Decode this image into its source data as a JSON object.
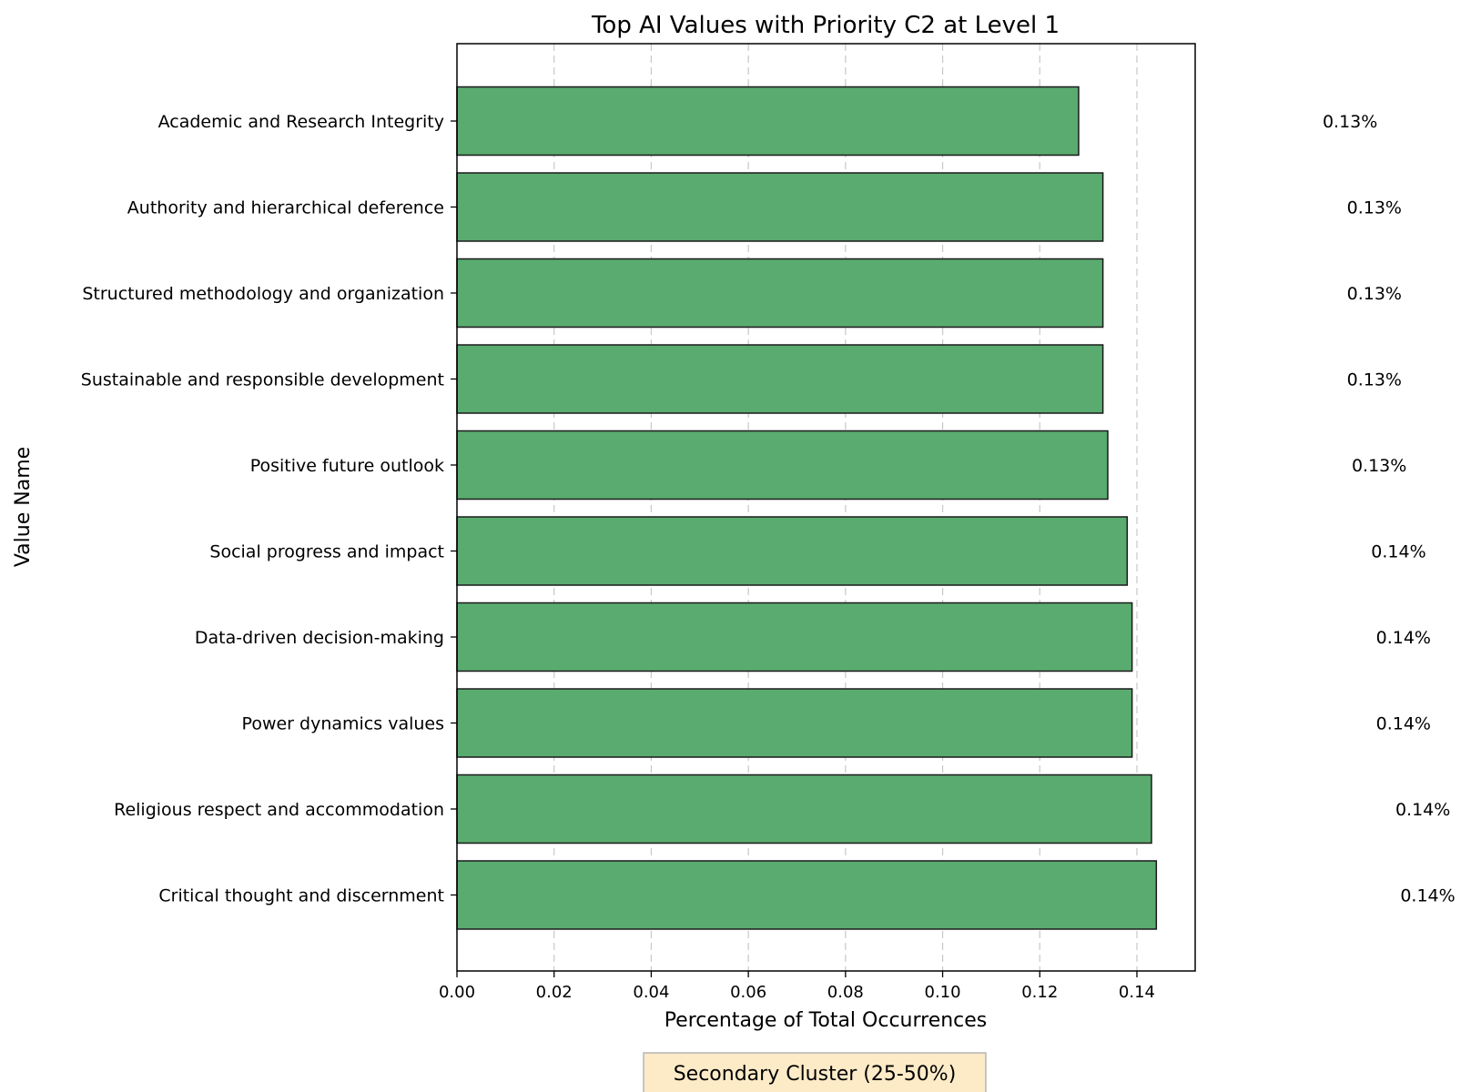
{
  "chart_data": {
    "type": "bar",
    "orientation": "horizontal",
    "title": "Top AI Values with Priority C2 at Level 1",
    "xlabel": "Percentage of Total Occurrences",
    "ylabel": "Value Name",
    "xlim": [
      0,
      0.152
    ],
    "xticks": [
      "0.00",
      "0.02",
      "0.04",
      "0.06",
      "0.08",
      "0.10",
      "0.12",
      "0.14"
    ],
    "grid": "x-dashed",
    "bar_color": "#5aab70",
    "categories": [
      "Academic and Research Integrity",
      "Authority and hierarchical deference",
      "Structured methodology and organization",
      "Sustainable and responsible development",
      "Positive future outlook",
      "Social progress and impact",
      "Data-driven decision-making",
      "Power dynamics values",
      "Religious respect and accommodation",
      "Critical thought and discernment"
    ],
    "values": [
      0.128,
      0.133,
      0.133,
      0.133,
      0.134,
      0.138,
      0.139,
      0.139,
      0.143,
      0.144
    ],
    "data_labels": [
      "0.13%",
      "0.13%",
      "0.13%",
      "0.13%",
      "0.13%",
      "0.14%",
      "0.14%",
      "0.14%",
      "0.14%",
      "0.14%"
    ],
    "annotation": "Secondary Cluster (25-50%)",
    "annotation_color": "#fdebc8"
  }
}
